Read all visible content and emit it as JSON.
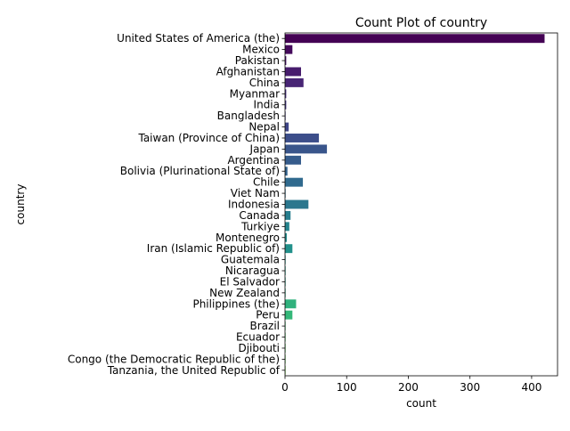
{
  "chart_data": {
    "type": "bar",
    "orientation": "horizontal",
    "title": "Count Plot of country",
    "xlabel": "count",
    "ylabel": "country",
    "xlim": [
      0,
      442
    ],
    "xticks": [
      0,
      100,
      200,
      300,
      400
    ],
    "grid": false,
    "palette": "viridis",
    "categories": [
      "United States of America (the)",
      "Mexico",
      "Pakistan",
      "Afghanistan",
      "China",
      "Myanmar",
      "India",
      "Bangladesh",
      "Nepal",
      "Taiwan (Province of China)",
      "Japan",
      "Argentina",
      "Bolivia (Plurinational State of)",
      "Chile",
      "Viet Nam",
      "Indonesia",
      "Canada",
      "Turkiye",
      "Montenegro",
      "Iran (Islamic Republic of)",
      "Guatemala",
      "Nicaragua",
      "El Salvador",
      "New Zealand",
      "Philippines (the)",
      "Peru",
      "Brazil",
      "Ecuador",
      "Djibouti",
      "Congo (the Democratic Republic of the)",
      "Tanzania, the United Republic of"
    ],
    "values": [
      421,
      12,
      2,
      26,
      30,
      2,
      2,
      1,
      6,
      55,
      68,
      26,
      4,
      29,
      1,
      38,
      9,
      7,
      3,
      12,
      1,
      1,
      1,
      1,
      18,
      12,
      1,
      1,
      1,
      1,
      1
    ]
  }
}
